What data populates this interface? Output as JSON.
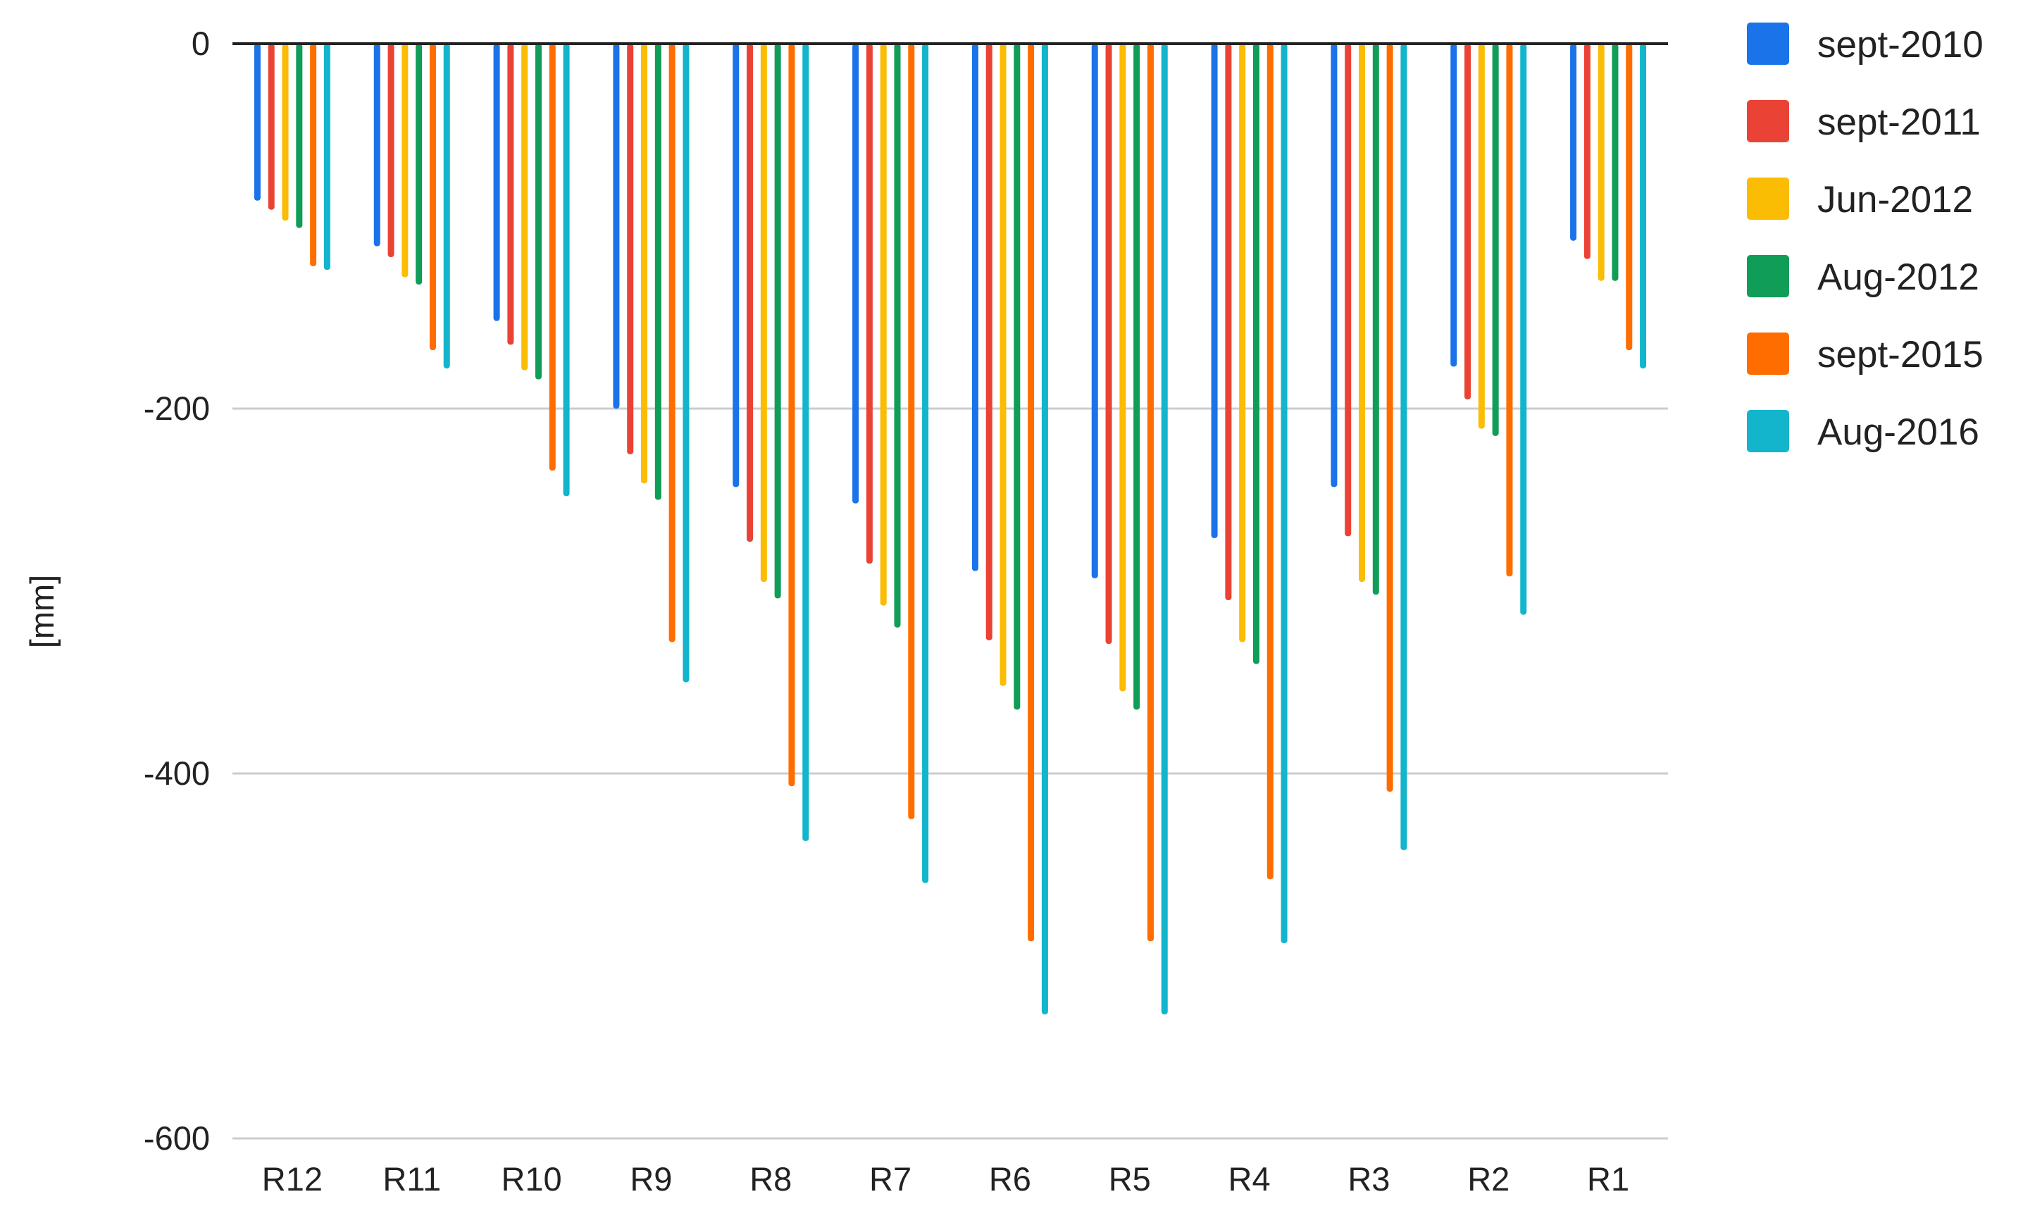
{
  "chart_data": {
    "type": "bar",
    "title": "",
    "xlabel": "",
    "ylabel": "[mm]",
    "ylim": [
      -600,
      0
    ],
    "yticks": [
      0,
      -200,
      -400,
      -600
    ],
    "ytick_labels": [
      "0",
      "-200",
      "-400",
      "-600"
    ],
    "grid": true,
    "legend_position": "right",
    "categories": [
      "R12",
      "R11",
      "R10",
      "R9",
      "R8",
      "R7",
      "R6",
      "R5",
      "R4",
      "R3",
      "R2",
      "R1"
    ],
    "series": [
      {
        "name": "sept-2010",
        "color": "#1a73e8",
        "values": [
          -86,
          -111,
          -152,
          -200,
          -243,
          -252,
          -289,
          -293,
          -271,
          -243,
          -177,
          -108
        ]
      },
      {
        "name": "sept-2011",
        "color": "#ea4335",
        "values": [
          -91,
          -117,
          -165,
          -225,
          -273,
          -285,
          -327,
          -329,
          -305,
          -270,
          -195,
          -118
        ]
      },
      {
        "name": "Jun-2012",
        "color": "#fbbc04",
        "values": [
          -97,
          -128,
          -179,
          -241,
          -295,
          -308,
          -352,
          -355,
          -328,
          -295,
          -211,
          -130
        ]
      },
      {
        "name": "Aug-2012",
        "color": "#0f9d58",
        "values": [
          -101,
          -132,
          -184,
          -250,
          -304,
          -320,
          -365,
          -365,
          -340,
          -302,
          -215,
          -130
        ]
      },
      {
        "name": "sept-2015",
        "color": "#ff6d01",
        "values": [
          -122,
          -168,
          -234,
          -328,
          -407,
          -425,
          -492,
          -492,
          -458,
          -410,
          -292,
          -168
        ]
      },
      {
        "name": "Aug-2016",
        "color": "#12b5cb",
        "values": [
          -124,
          -178,
          -248,
          -350,
          -437,
          -460,
          -532,
          -532,
          -493,
          -442,
          -313,
          -178
        ]
      }
    ]
  }
}
